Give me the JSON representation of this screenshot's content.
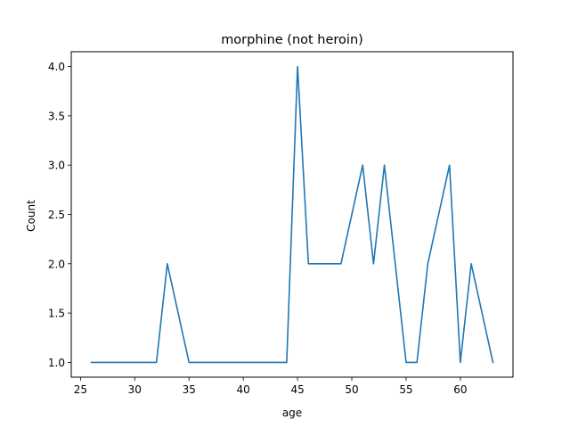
{
  "chart_data": {
    "type": "line",
    "title": "morphine (not heroin)",
    "xlabel": "age",
    "ylabel": "Count",
    "xlim": [
      24.15,
      64.85
    ],
    "ylim": [
      0.85,
      4.15
    ],
    "xticks": [
      25,
      30,
      35,
      40,
      45,
      50,
      55,
      60
    ],
    "yticks": [
      1.0,
      1.5,
      2.0,
      2.5,
      3.0,
      3.5,
      4.0
    ],
    "xtick_labels": [
      "25",
      "30",
      "35",
      "40",
      "45",
      "50",
      "55",
      "60"
    ],
    "ytick_labels": [
      "1.0",
      "1.5",
      "2.0",
      "2.5",
      "3.0",
      "3.5",
      "4.0"
    ],
    "grid": false,
    "series": [
      {
        "color": "#1f77b4",
        "x": [
          26,
          32,
          33,
          35,
          44,
          45,
          46,
          49,
          51,
          52,
          53,
          55,
          56,
          57,
          59,
          60,
          61,
          63
        ],
        "y": [
          1,
          1,
          2,
          1,
          1,
          4,
          2,
          2,
          3,
          2,
          3,
          1,
          1,
          2,
          3,
          1,
          2,
          1
        ]
      }
    ]
  }
}
